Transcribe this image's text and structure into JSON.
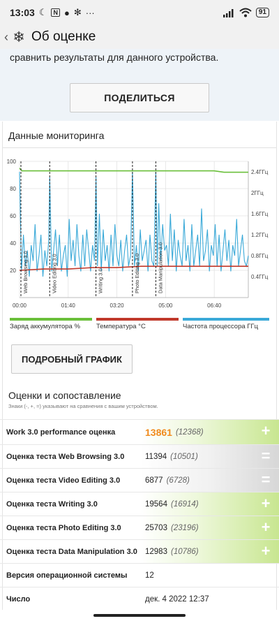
{
  "status_bar": {
    "time": "13:03",
    "battery": "91",
    "left_icons": [
      "moon-icon",
      "nfc-icon",
      "apple-icon",
      "gear-icon",
      "dots-icon"
    ],
    "right_icons": [
      "signal-icon",
      "wifi-icon",
      "battery-icon"
    ]
  },
  "app_bar": {
    "title": "Об оценке",
    "logo_icon": "snowflake-icon",
    "back_icon": "chevron-left-icon"
  },
  "intro_text": "сравнить результаты для данного устройства.",
  "share_button": "ПОДЕЛИТЬСЯ",
  "monitoring": {
    "title": "Данные мониторинга",
    "detail_button": "ПОДРОБНЫЙ ГРАФИК"
  },
  "chart_data": {
    "type": "line",
    "x_ticks": [
      "00:00",
      "01:40",
      "03:20",
      "05:00",
      "06:40"
    ],
    "y_left_ticks": [
      "20",
      "40",
      "60",
      "80",
      "100"
    ],
    "y_right_ticks": [
      "0.4ГГц",
      "0.8ГГц",
      "1.2ГГц",
      "1.6ГГц",
      "2ГГц",
      "2.4ГГц"
    ],
    "ylim_left": [
      0,
      100
    ],
    "ylim_right_ghz": [
      0,
      2.6
    ],
    "xlim_seconds": [
      0,
      470
    ],
    "grid": true,
    "markers": [
      {
        "label": "Web Browsing 3.0",
        "t": 0
      },
      {
        "label": "Video Editing 3.0",
        "t": 62
      },
      {
        "label": "Writing 3.0",
        "t": 157
      },
      {
        "label": "Photo Editing 3.0",
        "t": 232
      },
      {
        "label": "Data Manipulation 3.0",
        "t": 280
      }
    ],
    "series": [
      {
        "name": "Заряд аккумулятора %",
        "color": "#6abf3a",
        "x": [
          0,
          5,
          400,
          420,
          470
        ],
        "values": [
          95,
          93,
          93,
          92,
          92
        ]
      },
      {
        "name": "Температура °C",
        "color": "#c0392b",
        "x": [
          0,
          50,
          100,
          150,
          200,
          250,
          300,
          350,
          400,
          470
        ],
        "values": [
          20,
          21,
          21,
          22,
          22,
          23,
          23,
          23,
          23,
          23
        ]
      },
      {
        "name": "Частота процессора ГГц",
        "color": "#3aa9d8",
        "x": [
          0,
          4,
          8,
          12,
          16,
          20,
          24,
          28,
          32,
          36,
          40,
          44,
          48,
          52,
          56,
          60,
          62,
          66,
          70,
          74,
          78,
          82,
          86,
          90,
          94,
          98,
          102,
          106,
          110,
          114,
          118,
          122,
          126,
          130,
          134,
          138,
          142,
          146,
          150,
          154,
          157,
          160,
          164,
          168,
          172,
          176,
          180,
          184,
          188,
          192,
          196,
          200,
          204,
          208,
          212,
          216,
          220,
          224,
          228,
          232,
          236,
          240,
          244,
          248,
          252,
          256,
          260,
          264,
          268,
          272,
          276,
          280,
          283,
          286,
          290,
          294,
          298,
          302,
          306,
          310,
          314,
          318,
          322,
          326,
          330,
          334,
          338,
          342,
          346,
          350,
          354,
          358,
          362,
          366,
          370,
          374,
          378,
          382,
          386,
          390,
          394,
          398,
          402,
          406,
          410,
          414,
          418,
          422,
          426,
          430,
          434,
          438,
          442,
          446,
          450,
          454,
          458,
          462,
          466,
          470
        ],
        "values": [
          2.4,
          0.5,
          1.2,
          0.6,
          0.9,
          0.4,
          1.0,
          0.7,
          1.4,
          0.5,
          0.8,
          1.2,
          0.4,
          0.9,
          0.6,
          1.1,
          2.3,
          0.5,
          0.9,
          1.3,
          0.6,
          1.2,
          0.5,
          0.8,
          1.0,
          0.4,
          1.5,
          0.7,
          1.1,
          0.6,
          1.4,
          0.8,
          0.5,
          1.2,
          0.6,
          1.3,
          0.9,
          0.5,
          1.0,
          0.7,
          2.3,
          0.6,
          1.6,
          0.5,
          1.3,
          0.7,
          1.0,
          0.5,
          1.2,
          0.6,
          1.4,
          0.8,
          0.6,
          1.1,
          0.5,
          0.9,
          1.2,
          0.6,
          0.8,
          2.4,
          0.6,
          1.0,
          0.5,
          1.3,
          0.7,
          0.9,
          1.1,
          0.5,
          1.2,
          0.7,
          0.6,
          2.4,
          0.6,
          1.8,
          0.7,
          1.4,
          0.9,
          1.0,
          0.6,
          1.6,
          0.7,
          1.3,
          0.5,
          1.1,
          0.8,
          0.6,
          1.5,
          0.7,
          1.0,
          0.5,
          1.4,
          0.6,
          0.9,
          1.2,
          0.6,
          1.7,
          0.7,
          0.9,
          1.3,
          0.5,
          1.0,
          0.8,
          1.4,
          0.6,
          1.2,
          0.5,
          0.9,
          1.3,
          0.7,
          1.1,
          0.5,
          1.0,
          0.8,
          1.5,
          0.6,
          0.9,
          1.2,
          0.7,
          0.6,
          0.8
        ]
      }
    ]
  },
  "scores": {
    "title": "Оценки и сопоставление",
    "subtitle": "Знаки (-, +, =) указывают на сравнения с вашим устройством.",
    "rows": [
      {
        "label": "Work 3.0 performance оценка",
        "value": "13861",
        "ref": "(12368)",
        "sign": "plus"
      },
      {
        "label": "Оценка теста Web Browsing 3.0",
        "value": "11394",
        "ref": "(10501)",
        "sign": "equal"
      },
      {
        "label": "Оценка теста Video Editing 3.0",
        "value": "6877",
        "ref": "(6728)",
        "sign": "equal"
      },
      {
        "label": "Оценка теста Writing 3.0",
        "value": "19564",
        "ref": "(16914)",
        "sign": "plus"
      },
      {
        "label": "Оценка теста Photo Editing 3.0",
        "value": "25703",
        "ref": "(23196)",
        "sign": "plus"
      },
      {
        "label": "Оценка теста Data Manipulation 3.0",
        "value": "12983",
        "ref": "(10786)",
        "sign": "plus"
      },
      {
        "label": "Версия операционной системы",
        "value": "12",
        "ref": "",
        "sign": "none"
      },
      {
        "label": "Число",
        "value": "дек. 4 2022 12:37",
        "ref": "",
        "sign": "none"
      }
    ]
  }
}
